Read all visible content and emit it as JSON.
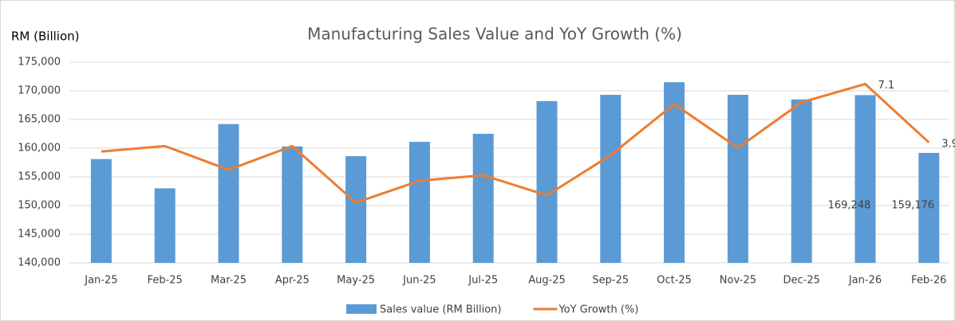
{
  "chart_data": {
    "type": "combo",
    "title": "Manufacturing Sales Value and YoY Growth (%)",
    "y_axis_label": "RM (Billion)",
    "categories": [
      "Jan-25",
      "Feb-25",
      "Mar-25",
      "Apr-25",
      "May-25",
      "Jun-25",
      "Jul-25",
      "Aug-25",
      "Sep-25",
      "Oct-25",
      "Nov-25",
      "Dec-25",
      "Jan-26",
      "Feb-26"
    ],
    "series": [
      {
        "name": "Sales value (RM Billion)",
        "type": "bar",
        "color": "#5b9bd5",
        "values": [
          158100,
          153000,
          164200,
          160300,
          158600,
          161100,
          162500,
          168200,
          169300,
          171500,
          169300,
          168500,
          169248,
          159176
        ],
        "value_labels": [
          null,
          null,
          null,
          null,
          null,
          null,
          null,
          null,
          null,
          null,
          null,
          null,
          "169,248",
          "159,176"
        ]
      },
      {
        "name": "YoY Growth (%)",
        "type": "line",
        "axis": "y2",
        "color": "#ed7d31",
        "values": [
          3.4,
          3.7,
          2.4,
          3.7,
          0.6,
          1.8,
          2.1,
          1.0,
          3.2,
          6.0,
          3.6,
          6.1,
          7.1,
          3.9
        ],
        "value_labels": [
          null,
          null,
          null,
          null,
          null,
          null,
          null,
          null,
          null,
          null,
          null,
          null,
          "7.1",
          "3.9"
        ]
      }
    ],
    "ylim": [
      140000,
      175000
    ],
    "yticks": [
      {
        "value": 140000,
        "label": "140,000"
      },
      {
        "value": 145000,
        "label": "145,000"
      },
      {
        "value": 150000,
        "label": "150,000"
      },
      {
        "value": 155000,
        "label": "155,000"
      },
      {
        "value": 160000,
        "label": "160,000"
      },
      {
        "value": 165000,
        "label": "165,000"
      },
      {
        "value": 170000,
        "label": "170,000"
      },
      {
        "value": 175000,
        "label": "175,000"
      }
    ],
    "y2lim": [
      -2.7,
      8.3
    ],
    "grid": true,
    "legend": "bottom"
  }
}
